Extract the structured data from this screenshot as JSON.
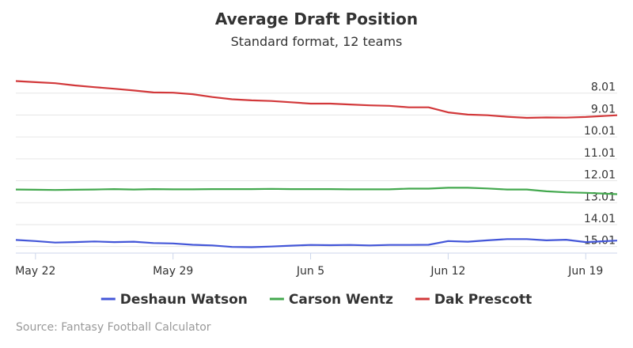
{
  "chart_data": {
    "type": "line",
    "title": "Average Draft Position",
    "subtitle": "Standard format, 12 teams",
    "credit": "Source: Fantasy Football Calculator",
    "x_tick_labels": [
      "May 22",
      "May 29",
      "Jun 5",
      "Jun 12",
      "Jun 19"
    ],
    "x_tick_day_index": [
      1,
      8,
      15,
      22,
      29
    ],
    "x_range_day_index": [
      0,
      30.6
    ],
    "y_tick_labels": [
      "8.01",
      "9.01",
      "10.01",
      "11.01",
      "12.01",
      "13.01",
      "14.01",
      "15.01"
    ],
    "y_tick_values": [
      8,
      9,
      10,
      11,
      12,
      13,
      14,
      15
    ],
    "ylim": [
      7,
      15.3
    ],
    "y_reversed": true,
    "y_axis_side": "right",
    "grid": true,
    "legend_position": "bottom",
    "series": [
      {
        "name": "Deshaun Watson",
        "color": "#4356d8",
        "x": [
          0,
          1,
          2,
          3,
          4,
          5,
          6,
          7,
          8,
          9,
          10,
          11,
          12,
          13,
          14,
          15,
          16,
          17,
          18,
          19,
          20,
          21,
          22,
          23,
          24,
          25,
          26,
          27,
          28,
          29,
          30.6
        ],
        "y": [
          14.7,
          14.75,
          14.82,
          14.8,
          14.77,
          14.8,
          14.78,
          14.84,
          14.86,
          14.92,
          14.95,
          15.02,
          15.03,
          15.0,
          14.96,
          14.93,
          14.94,
          14.93,
          14.95,
          14.93,
          14.93,
          14.92,
          14.75,
          14.78,
          14.72,
          14.66,
          14.66,
          14.72,
          14.69,
          14.8,
          14.73
        ]
      },
      {
        "name": "Carson Wentz",
        "color": "#43a84e",
        "x": [
          0,
          1,
          2,
          3,
          4,
          5,
          6,
          7,
          8,
          9,
          10,
          11,
          12,
          13,
          14,
          15,
          16,
          17,
          18,
          19,
          20,
          21,
          22,
          23,
          24,
          25,
          26,
          27,
          28,
          29,
          30.6
        ],
        "y": [
          12.4,
          12.41,
          12.42,
          12.41,
          12.4,
          12.38,
          12.4,
          12.38,
          12.39,
          12.39,
          12.38,
          12.38,
          12.38,
          12.37,
          12.38,
          12.38,
          12.38,
          12.39,
          12.39,
          12.39,
          12.36,
          12.36,
          12.32,
          12.32,
          12.35,
          12.4,
          12.4,
          12.48,
          12.53,
          12.55,
          12.61
        ]
      },
      {
        "name": "Dak Prescott",
        "color": "#d2383a",
        "x": [
          0,
          1,
          2,
          3,
          4,
          5,
          6,
          7,
          8,
          9,
          10,
          11,
          12,
          13,
          14,
          15,
          16,
          17,
          18,
          19,
          20,
          21,
          22,
          23,
          24,
          25,
          26,
          27,
          28,
          29,
          30.6
        ],
        "y": [
          7.45,
          7.5,
          7.55,
          7.65,
          7.73,
          7.8,
          7.88,
          7.97,
          7.98,
          8.05,
          8.18,
          8.28,
          8.33,
          8.36,
          8.42,
          8.48,
          8.48,
          8.52,
          8.56,
          8.58,
          8.65,
          8.65,
          8.88,
          8.98,
          9.01,
          9.08,
          9.13,
          9.11,
          9.12,
          9.09,
          9.01
        ]
      }
    ]
  }
}
